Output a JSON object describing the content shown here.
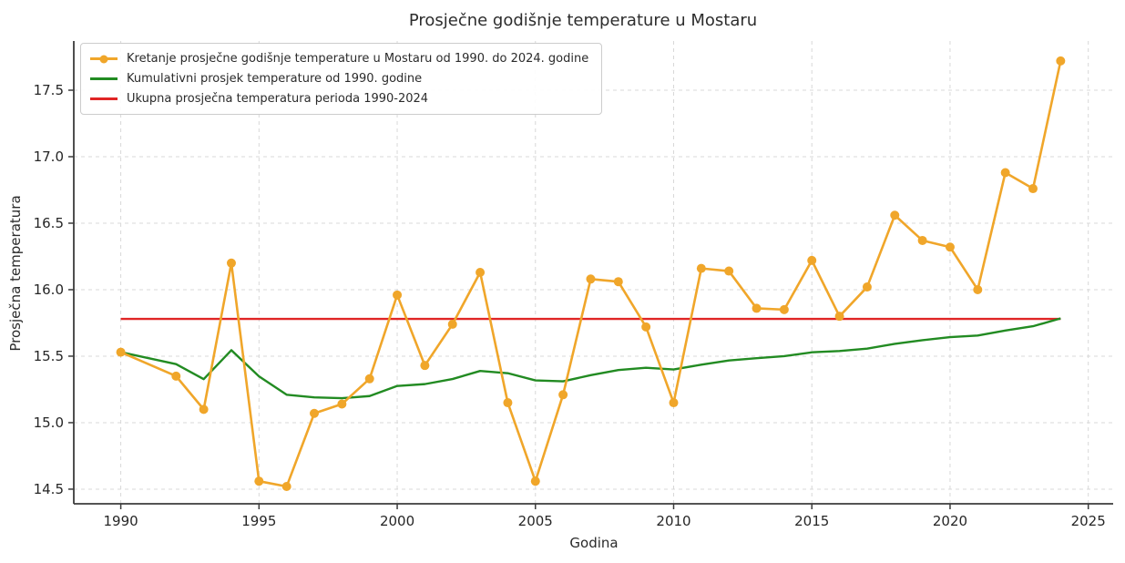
{
  "chart_data": {
    "type": "line",
    "title": "Prosječne godišnje temperature u Mostaru",
    "xlabel": "Godina",
    "ylabel": "Prosječna temperatura",
    "xlim": [
      1988.3,
      2025.9
    ],
    "ylim": [
      14.39,
      17.87
    ],
    "xticks": [
      1990,
      1995,
      2000,
      2005,
      2010,
      2015,
      2020,
      2025
    ],
    "yticks": [
      14.5,
      15.0,
      15.5,
      16.0,
      16.5,
      17.0,
      17.5
    ],
    "grid": {
      "show": true,
      "style": "dashed",
      "color": "#d8d8d8"
    },
    "legend_position": "upper-left",
    "colors": {
      "annual": "#F0A62A",
      "cumulative": "#228B22",
      "mean": "#E02525",
      "spine": "#3b3b3b"
    },
    "x": [
      1990,
      1992,
      1993,
      1994,
      1995,
      1996,
      1997,
      1998,
      1999,
      2000,
      2001,
      2002,
      2003,
      2004,
      2005,
      2006,
      2007,
      2008,
      2009,
      2010,
      2011,
      2012,
      2013,
      2014,
      2015,
      2016,
      2017,
      2018,
      2019,
      2020,
      2021,
      2022,
      2023,
      2024
    ],
    "series": [
      {
        "name": "Kretanje prosječne godišnje temperature u Mostaru od 1990. do 2024. godine",
        "color": "#F0A62A",
        "marker": "circle",
        "values": [
          15.53,
          15.35,
          15.1,
          16.2,
          14.56,
          14.52,
          15.07,
          15.14,
          15.33,
          15.96,
          15.43,
          15.74,
          16.13,
          15.15,
          14.56,
          15.21,
          16.08,
          16.06,
          15.72,
          15.15,
          16.16,
          16.14,
          15.86,
          15.85,
          16.22,
          15.8,
          16.02,
          16.56,
          16.37,
          16.32,
          16.0,
          16.88,
          16.76,
          17.72
        ]
      },
      {
        "name": "Kumulativni prosjek temperature od 1990. godine",
        "color": "#228B22",
        "marker": "none",
        "values": [
          15.53,
          15.44,
          15.327,
          15.545,
          15.348,
          15.21,
          15.19,
          15.184,
          15.2,
          15.276,
          15.29,
          15.328,
          15.389,
          15.372,
          15.318,
          15.311,
          15.357,
          15.396,
          15.413,
          15.4,
          15.436,
          15.468,
          15.485,
          15.5,
          15.529,
          15.539,
          15.557,
          15.593,
          15.62,
          15.643,
          15.655,
          15.693,
          15.725,
          15.784
        ]
      },
      {
        "name": "Ukupna prosječna temperatura perioda 1990-2024",
        "color": "#E02525",
        "marker": "none",
        "type": "hline",
        "value": 15.78,
        "span": [
          1990,
          2024
        ]
      }
    ]
  }
}
